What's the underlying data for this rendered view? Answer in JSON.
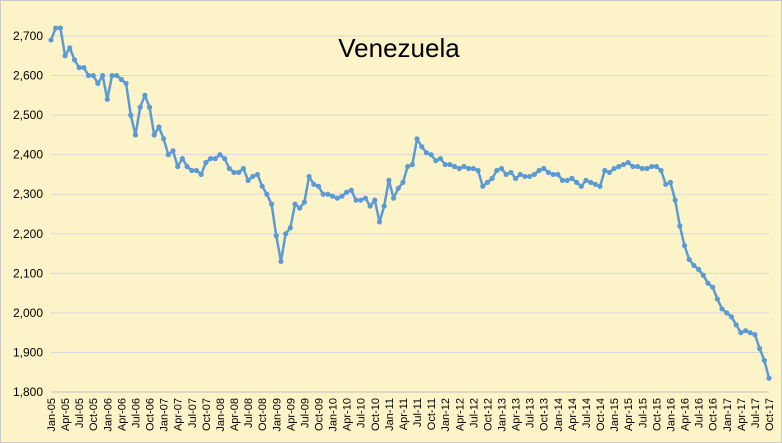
{
  "chart_data": {
    "type": "line",
    "title": "Venezuela",
    "xlabel": "",
    "ylabel": "",
    "ylim": [
      1800,
      2700
    ],
    "yticks": [
      1800,
      1900,
      2000,
      2100,
      2200,
      2300,
      2400,
      2500,
      2600,
      2700
    ],
    "ytick_labels": [
      "1,800",
      "1,900",
      "2,000",
      "2,100",
      "2,200",
      "2,300",
      "2,400",
      "2,500",
      "2,600",
      "2,700"
    ],
    "grid": true,
    "legend": "none",
    "x_start": "Jan-05",
    "x_tick_labels": [
      "Jan-05",
      "Apr-05",
      "Jul-05",
      "Oct-05",
      "Jan-06",
      "Apr-06",
      "Jul-06",
      "Oct-06",
      "Jan-07",
      "Apr-07",
      "Jul-07",
      "Oct-07",
      "Jan-08",
      "Apr-08",
      "Jul-08",
      "Oct-08",
      "Jan-09",
      "Apr-09",
      "Jul-09",
      "Oct-09",
      "Jan-10",
      "Apr-10",
      "Jul-10",
      "Oct-10",
      "Jan-11",
      "Apr-11",
      "Jul-11",
      "Oct-11",
      "Jan-12",
      "Apr-12",
      "Jul-12",
      "Oct-12",
      "Jan-13",
      "Apr-13",
      "Jul-13",
      "Oct-13",
      "Jan-14",
      "Apr-14",
      "Jul-14",
      "Oct-14",
      "Jan-15",
      "Apr-15",
      "Jul-15",
      "Oct-15",
      "Jan-16",
      "Apr-16",
      "Jul-16",
      "Oct-16",
      "Jan-17",
      "Apr-17",
      "Jul-17",
      "Oct-17"
    ],
    "series": [
      {
        "values": [
          2690,
          2720,
          2720,
          2650,
          2670,
          2640,
          2620,
          2620,
          2600,
          2600,
          2580,
          2600,
          2540,
          2600,
          2600,
          2590,
          2580,
          2500,
          2450,
          2520,
          2550,
          2520,
          2450,
          2470,
          2440,
          2400,
          2410,
          2370,
          2390,
          2370,
          2360,
          2360,
          2350,
          2380,
          2390,
          2390,
          2400,
          2390,
          2365,
          2355,
          2355,
          2365,
          2335,
          2345,
          2350,
          2320,
          2300,
          2275,
          2195,
          2130,
          2200,
          2215,
          2275,
          2265,
          2280,
          2345,
          2325,
          2320,
          2300,
          2300,
          2295,
          2290,
          2295,
          2305,
          2310,
          2285,
          2285,
          2290,
          2270,
          2285,
          2230,
          2270,
          2335,
          2290,
          2315,
          2330,
          2370,
          2375,
          2440,
          2420,
          2405,
          2400,
          2385,
          2390,
          2375,
          2375,
          2370,
          2365,
          2370,
          2365,
          2365,
          2360,
          2320,
          2330,
          2340,
          2360,
          2365,
          2350,
          2355,
          2340,
          2350,
          2345,
          2345,
          2350,
          2360,
          2365,
          2355,
          2350,
          2350,
          2335,
          2335,
          2340,
          2330,
          2320,
          2335,
          2330,
          2325,
          2320,
          2360,
          2355,
          2365,
          2370,
          2375,
          2380,
          2370,
          2370,
          2365,
          2365,
          2370,
          2370,
          2360,
          2325,
          2330,
          2285,
          2220,
          2170,
          2135,
          2120,
          2110,
          2095,
          2075,
          2065,
          2035,
          2010,
          2000,
          1990,
          1970,
          1950,
          1955,
          1950,
          1945,
          1910,
          1880,
          1835
        ]
      }
    ],
    "line_color": "#5B9BD5",
    "background_color": "#FDF3C8",
    "grid_color": "#D9D9D9"
  }
}
